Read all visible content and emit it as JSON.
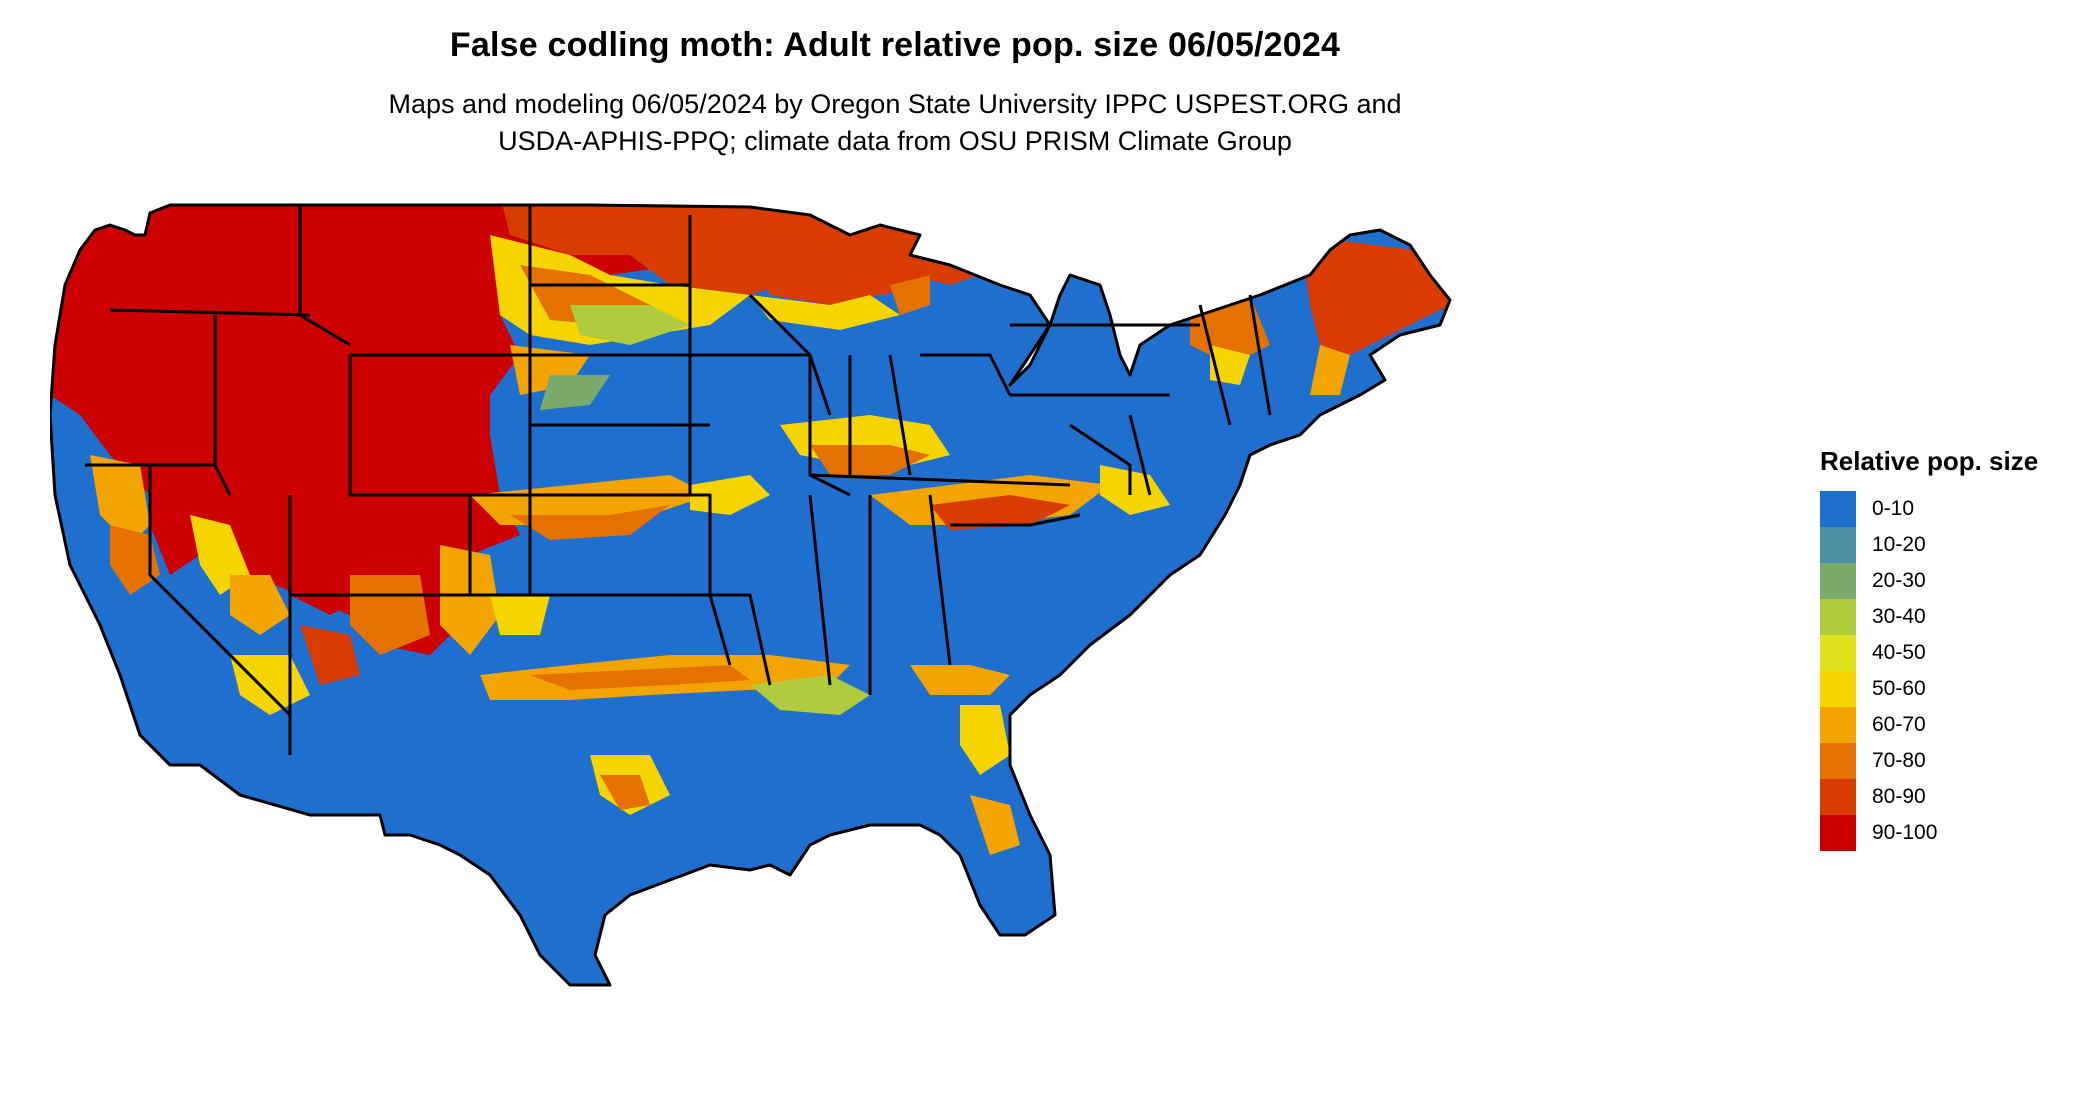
{
  "title": "False codling moth: Adult relative pop. size 06/05/2024",
  "subtitle": [
    "Maps and modeling 06/05/2024 by Oregon State University IPPC USPEST.ORG and",
    "USDA-APHIS-PPQ; climate data from OSU PRISM Climate Group"
  ],
  "legend": {
    "title": "Relative pop. size",
    "items": [
      {
        "label": "0-10",
        "color": "#1f6fcf"
      },
      {
        "label": "10-20",
        "color": "#4a8fa3"
      },
      {
        "label": "20-30",
        "color": "#7bab6c"
      },
      {
        "label": "30-40",
        "color": "#b0cc3e"
      },
      {
        "label": "40-50",
        "color": "#dfe21c"
      },
      {
        "label": "50-60",
        "color": "#f5d400"
      },
      {
        "label": "60-70",
        "color": "#f2a400"
      },
      {
        "label": "70-80",
        "color": "#e57200"
      },
      {
        "label": "80-90",
        "color": "#d93c00"
      },
      {
        "label": "90-100",
        "color": "#cc0000"
      }
    ]
  },
  "map": {
    "region": "contiguous United States",
    "state_borders_color": "#000000"
  }
}
